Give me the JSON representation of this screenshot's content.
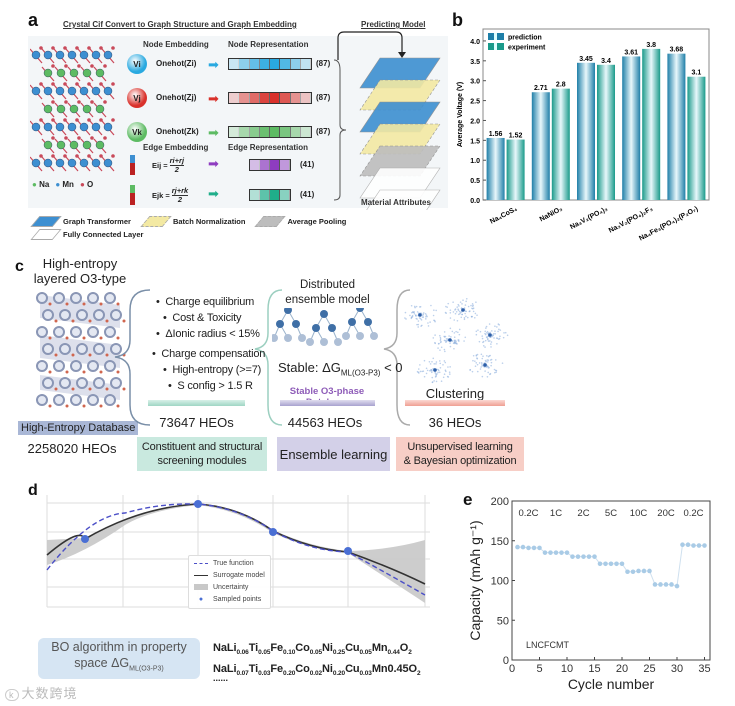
{
  "panel_a": {
    "label": "a",
    "title": "Crystal Cif Convert to Graph Structure and Graph Embedding",
    "model_title": "Predicting Model",
    "node_embedding": "Node Embedding",
    "node_representation": "Node Representation",
    "edge_embedding": "Edge Embedding",
    "edge_representation": "Edge Representation",
    "nodes": [
      {
        "symbol": "Vi",
        "onehot": "Onehot(Zi)",
        "dim": "(87)",
        "color": "#29a9e0"
      },
      {
        "symbol": "Vj",
        "onehot": "Onehot(Zj)",
        "dim": "(87)",
        "color": "#d9312b"
      },
      {
        "symbol": "Vk",
        "onehot": "Onehot(Zk)",
        "dim": "(87)",
        "color": "#5dbb63"
      }
    ],
    "edges": [
      {
        "formula_left": "Eij =",
        "formula_num": "ri+rj",
        "formula_den": "2",
        "dim": "(41)",
        "color": "#8e3cc0"
      },
      {
        "formula_left": "Ejk =",
        "formula_num": "rj+rk",
        "formula_den": "2",
        "dim": "(41)",
        "color": "#1fae8a"
      }
    ],
    "atom_legend": [
      "Na",
      "Mn",
      "O"
    ],
    "output_label": "Material Attributes",
    "layer_legend": [
      {
        "label": "Graph Transformer",
        "color": "#3d8fd1"
      },
      {
        "label": "Batch Normalization",
        "color": "#f3e9a3"
      },
      {
        "label": "Average Pooling",
        "color": "#bdbdbd"
      },
      {
        "label": "Fully Connected Layer",
        "color": "#ffffff"
      }
    ]
  },
  "panel_c": {
    "label": "c",
    "structure_title": [
      "High-entropy",
      "layered O3-type"
    ],
    "database_label": "High-Entropy Database",
    "database_count": "2258020 HEOs",
    "screening_criteria_1": [
      "Charge equilibrium",
      "Cost & Toxicity",
      "ΔIonic radius < 15%"
    ],
    "screening_criteria_2": [
      "Charge compensation",
      "High-entropy (>=7)",
      "S config > 1.5 R"
    ],
    "screening_count": "73647 HEOs",
    "screening_module": [
      "Constituent and structural",
      "screening modules"
    ],
    "ensemble_title": [
      "Distributed",
      "ensemble model"
    ],
    "stable_prefix": "Stable: ΔG",
    "stable_sub": "ML(O3-P3)",
    "stable_suffix": " < 0",
    "stable_db": "Stable O3-phase Database",
    "ensemble_count": "44563 HEOs",
    "ensemble_module": "Ensemble learning",
    "clustering_label": "Clustering",
    "clustering_count": "36 HEOs",
    "clustering_module": [
      "Unsupervised learning",
      "& Bayesian optimization"
    ],
    "colors": {
      "teal": "#c9e9df",
      "purple": "#d3d0e8",
      "red": "#f7cec6"
    }
  },
  "panel_d": {
    "label": "d",
    "legend": [
      "True function",
      "Surrogate model",
      "Uncertainty",
      "Sampled points"
    ],
    "bo_box": "BO algorithm in property space ΔG",
    "bo_sub": "ML(O3-P3)",
    "formulas": [
      [
        [
          "NaLi",
          ""
        ],
        [
          "",
          "0.06"
        ],
        [
          "Ti",
          ""
        ],
        [
          "",
          "0.05"
        ],
        [
          "Fe",
          ""
        ],
        [
          "",
          "0.10"
        ],
        [
          "Co",
          ""
        ],
        [
          "",
          "0.05"
        ],
        [
          "Ni",
          ""
        ],
        [
          "",
          "0.25"
        ],
        [
          "Cu",
          ""
        ],
        [
          "",
          "0.05"
        ],
        [
          "Mn",
          ""
        ],
        [
          "",
          "0.44"
        ],
        [
          "O",
          ""
        ],
        [
          "",
          "2"
        ]
      ],
      [
        [
          "NaLi",
          ""
        ],
        [
          "",
          "0.07"
        ],
        [
          "Ti",
          ""
        ],
        [
          "",
          "0.03"
        ],
        [
          "Fe",
          ""
        ],
        [
          "",
          "0.20"
        ],
        [
          "Co",
          ""
        ],
        [
          "",
          "0.02"
        ],
        [
          "Ni",
          ""
        ],
        [
          "",
          "0.20"
        ],
        [
          "Cu",
          ""
        ],
        [
          "",
          "0.03"
        ],
        [
          "Mn0.45O",
          ""
        ],
        [
          "",
          "2"
        ]
      ]
    ],
    "ellipsis": "......"
  },
  "watermark": "大数跨境",
  "chart_data": [
    {
      "panel": "b",
      "type": "bar",
      "ylabel": "Average Voltage (V)",
      "xlabel": "",
      "ylim": [
        0,
        4.3
      ],
      "yticks": [
        "0.0",
        "0.5",
        "1.0",
        "1.5",
        "2.0",
        "2.5",
        "3.0",
        "3.5",
        "4.0"
      ],
      "categories": [
        "Na₄CoS₄",
        "NaNiO₃",
        "Na₃V₂(PO₄)₃",
        "Na₃V₂(PO₄)₂F₃",
        "Na₄Fe₃(PO₄)₂(P₂O₇)"
      ],
      "series": [
        {
          "name": "prediction",
          "values": [
            1.56,
            2.71,
            3.45,
            3.61,
            3.68
          ],
          "labels": [
            "1.56",
            "2.71",
            "3.45",
            "3.61",
            "3.68"
          ],
          "color": "#1f7fa8"
        },
        {
          "name": "experiment",
          "values": [
            1.52,
            2.8,
            3.4,
            3.8,
            3.1
          ],
          "labels": [
            "1.52",
            "2.8",
            "3.4",
            "3.8",
            "3.1"
          ],
          "color": "#1a9a8a"
        }
      ],
      "legend": "top-left"
    },
    {
      "panel": "e",
      "type": "scatter",
      "xlabel": "Cycle number",
      "ylabel": "Capacity (mAh g⁻¹)",
      "xlim": [
        0,
        36
      ],
      "ylim": [
        0,
        200
      ],
      "xticks": [
        "0",
        "5",
        "10",
        "15",
        "20",
        "25",
        "30",
        "35"
      ],
      "yticks": [
        "0",
        "50",
        "100",
        "150",
        "200"
      ],
      "rates": [
        "0.2C",
        "1C",
        "2C",
        "5C",
        "10C",
        "20C",
        "0.2C"
      ],
      "annotation": "LNCFCMT",
      "x": [
        1,
        2,
        3,
        4,
        5,
        6,
        7,
        8,
        9,
        10,
        11,
        12,
        13,
        14,
        15,
        16,
        17,
        18,
        19,
        20,
        21,
        22,
        23,
        24,
        25,
        26,
        27,
        28,
        29,
        30,
        31,
        32,
        33,
        34,
        35
      ],
      "y": [
        142,
        142,
        141,
        141,
        141,
        135,
        135,
        135,
        135,
        135,
        130,
        130,
        130,
        130,
        130,
        121,
        121,
        121,
        121,
        121,
        111,
        111,
        112,
        112,
        112,
        95,
        95,
        95,
        95,
        93,
        145,
        145,
        144,
        144,
        144
      ],
      "color": "#a9cbe6"
    }
  ]
}
